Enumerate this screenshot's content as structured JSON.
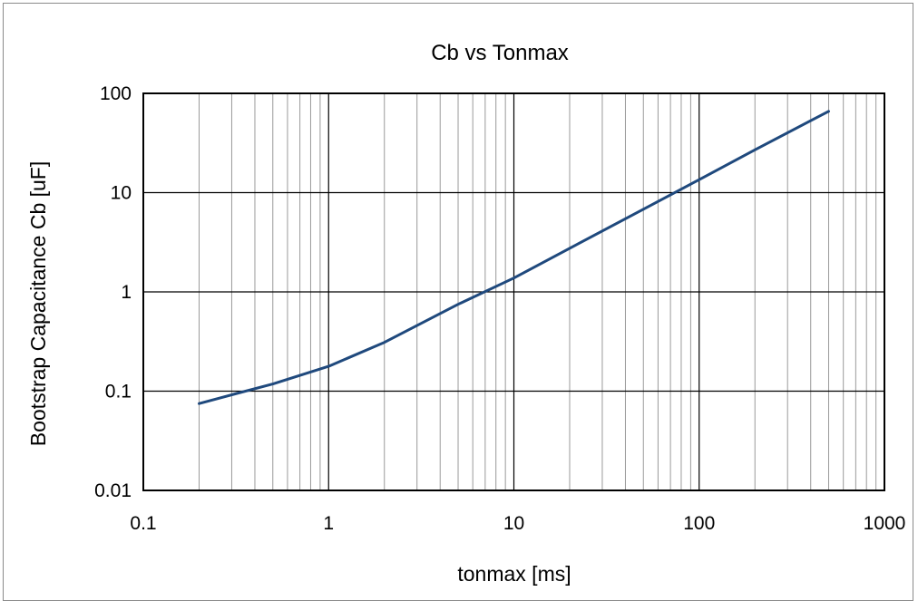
{
  "chart_data": {
    "type": "line",
    "title": "Cb  vs  Tonmax",
    "xlabel": "tonmax [ms]",
    "ylabel": "Bootstrap Capacitance Cb [uF]",
    "x_scale": "log",
    "y_scale": "log",
    "xlim": [
      0.1,
      1000
    ],
    "ylim": [
      0.01,
      100
    ],
    "x_ticks": [
      "0.1",
      "1",
      "10",
      "100",
      "1000"
    ],
    "y_ticks": [
      "0.01",
      "0.1",
      "1",
      "10",
      "100"
    ],
    "grid": true,
    "legend": "none",
    "series": [
      {
        "color": "#1f497d",
        "x": [
          0.2,
          0.3,
          0.5,
          1,
          2,
          5,
          10,
          20,
          50,
          100,
          200,
          500
        ],
        "y": [
          0.075,
          0.092,
          0.118,
          0.178,
          0.31,
          0.75,
          1.38,
          2.75,
          6.8,
          13.5,
          27,
          66
        ]
      }
    ]
  }
}
